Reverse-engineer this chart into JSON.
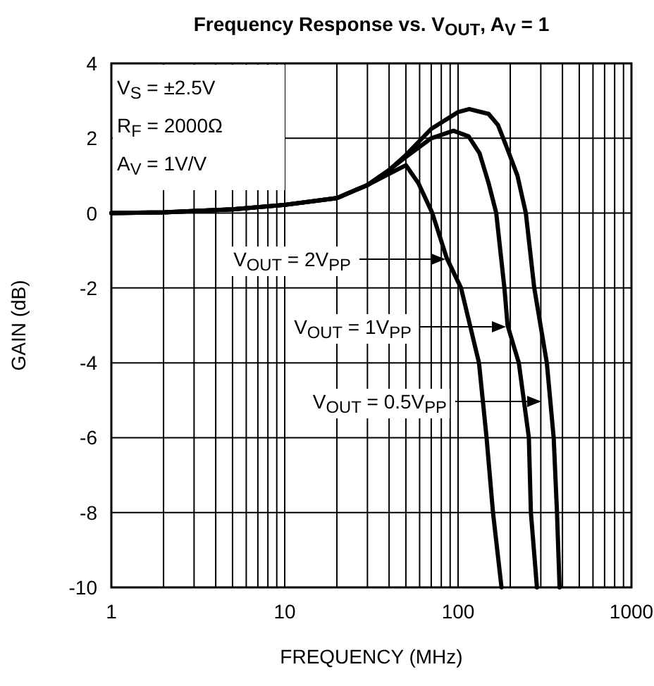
{
  "chart_data": {
    "type": "line",
    "title": "Frequency Response vs. V$_{OUT}$, A$_{V}$ = 1",
    "xlabel": "FREQUENCY (MHz)",
    "ylabel": "GAIN (dB)",
    "log": "x",
    "grid": true,
    "line_style": "solid",
    "marker": "none",
    "xlim": [
      1,
      1000
    ],
    "xticks": [
      1,
      10,
      100,
      1000
    ],
    "ylim": [
      -10,
      4
    ],
    "yticks": [
      4,
      2,
      0,
      -2,
      -4,
      -6,
      -8,
      -10
    ],
    "annotations": [
      "V$_{S}$ = ±2.5V",
      "R$_{F}$ = 2000Ω",
      "A$_{V}$ = 1V/V",
      "V$_{OUT}$ = 2V$_{PP}$",
      "V$_{OUT}$ = 1V$_{PP}$",
      "V$_{OUT}$ = 0.5V$_{PP}$"
    ],
    "series": [
      {
        "color": "#000000",
        "x": [
          1,
          2,
          5,
          10,
          20,
          30,
          40,
          50,
          59,
          71,
          86,
          104,
          132,
          146,
          159,
          178
        ],
        "values": [
          0,
          0.02,
          0.1,
          0.22,
          0.4,
          0.75,
          1.05,
          1.28,
          0.8,
          0,
          -1.2,
          -2,
          -4,
          -6,
          -8,
          -10
        ]
      },
      {
        "color": "#000000",
        "x": [
          1,
          2,
          5,
          10,
          20,
          30,
          40,
          50,
          70,
          94,
          115,
          133,
          150,
          166,
          185,
          193,
          224,
          256,
          263,
          285
        ],
        "values": [
          0,
          0.02,
          0.1,
          0.22,
          0.4,
          0.75,
          1.15,
          1.5,
          2,
          2.2,
          2.05,
          1.6,
          0.8,
          0,
          -2,
          -3,
          -4,
          -6,
          -8,
          -10
        ]
      },
      {
        "color": "#000000",
        "x": [
          1,
          2,
          5,
          10,
          20,
          30,
          40,
          50,
          70,
          100,
          116,
          150,
          170,
          193,
          220,
          246,
          275,
          325,
          356,
          372,
          385
        ],
        "values": [
          0,
          0.02,
          0.1,
          0.22,
          0.4,
          0.75,
          1.15,
          1.55,
          2.25,
          2.7,
          2.78,
          2.65,
          2.35,
          1.7,
          1,
          0,
          -2,
          -4,
          -6,
          -8,
          -10
        ]
      }
    ]
  }
}
